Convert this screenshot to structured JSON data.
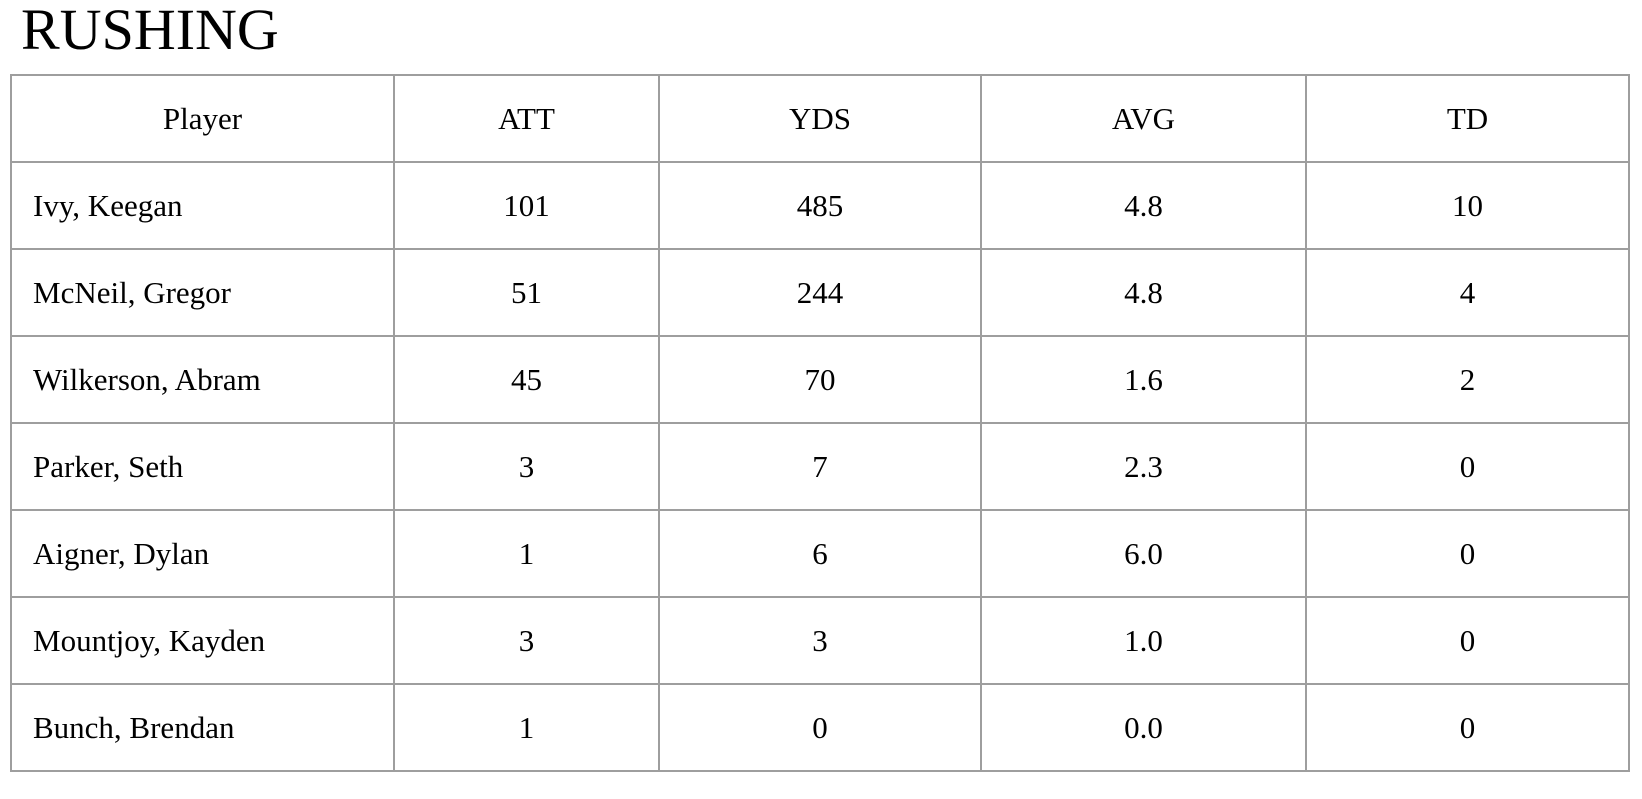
{
  "title": "RUSHING",
  "table": {
    "columns": [
      {
        "key": "player",
        "label": "Player"
      },
      {
        "key": "att",
        "label": "ATT"
      },
      {
        "key": "yds",
        "label": "YDS"
      },
      {
        "key": "avg",
        "label": "AVG"
      },
      {
        "key": "td",
        "label": "TD"
      }
    ],
    "rows": [
      {
        "player": "Ivy, Keegan",
        "att": "101",
        "yds": "485",
        "avg": "4.8",
        "td": "10"
      },
      {
        "player": "McNeil, Gregor",
        "att": "51",
        "yds": "244",
        "avg": "4.8",
        "td": "4"
      },
      {
        "player": "Wilkerson, Abram",
        "att": "45",
        "yds": "70",
        "avg": "1.6",
        "td": "2"
      },
      {
        "player": "Parker, Seth",
        "att": "3",
        "yds": "7",
        "avg": "2.3",
        "td": "0"
      },
      {
        "player": "Aigner, Dylan",
        "att": "1",
        "yds": "6",
        "avg": "6.0",
        "td": "0"
      },
      {
        "player": "Mountjoy, Kayden",
        "att": "3",
        "yds": "3",
        "avg": "1.0",
        "td": "0"
      },
      {
        "player": "Bunch, Brendan",
        "att": "1",
        "yds": "0",
        "avg": "0.0",
        "td": "0"
      }
    ]
  }
}
